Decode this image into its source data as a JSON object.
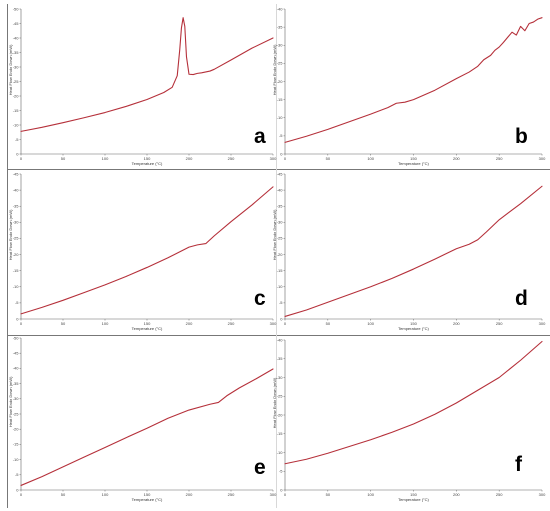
{
  "figure": {
    "colors": {
      "curve": "#b5303a",
      "axis": "#666666",
      "divider": "#777777",
      "label": "#000000"
    }
  },
  "panels": [
    {
      "label": "a"
    },
    {
      "label": "b"
    },
    {
      "label": "c"
    },
    {
      "label": "d"
    },
    {
      "label": "e"
    },
    {
      "label": "f"
    }
  ],
  "chart_data": [
    {
      "type": "line",
      "panel": "a",
      "xlabel": "Temperature (°C)",
      "ylabel": "Heat Flow Endo Down (mW)",
      "xlim": [
        0,
        300
      ],
      "ylim": [
        0,
        50
      ],
      "x_ticks": [
        0,
        50,
        100,
        150,
        200,
        250,
        300
      ],
      "y_ticks": [
        0,
        5,
        10,
        15,
        20,
        25,
        30,
        35,
        40,
        45,
        50
      ],
      "y_tick_labels": [
        "0",
        "-5",
        "-10",
        "-15",
        "-20",
        "-25",
        "-30",
        "-35",
        "-40",
        "-45",
        "-50"
      ],
      "x": [
        0,
        25,
        50,
        75,
        100,
        125,
        150,
        170,
        180,
        186,
        189,
        191,
        193,
        195,
        197,
        200,
        205,
        210,
        215,
        220,
        225,
        230,
        250,
        275,
        300
      ],
      "y": [
        7.8,
        9.2,
        10.8,
        12.5,
        14.3,
        16.4,
        18.8,
        21.2,
        23.0,
        27.0,
        36.0,
        43.5,
        47.0,
        44.0,
        33.5,
        27.5,
        27.4,
        27.8,
        28.0,
        28.3,
        28.6,
        29.2,
        32.4,
        36.5,
        40.0
      ]
    },
    {
      "type": "line",
      "panel": "b",
      "xlabel": "Temperature (°C)",
      "ylabel": "Heat Flow Endo Down (mW)",
      "xlim": [
        0,
        300
      ],
      "ylim": [
        0,
        40
      ],
      "x_ticks": [
        0,
        50,
        100,
        150,
        200,
        250,
        300
      ],
      "y_ticks": [
        0,
        5,
        10,
        15,
        20,
        25,
        30,
        35,
        40
      ],
      "y_tick_labels": [
        "0",
        "-5",
        "-10",
        "-15",
        "-20",
        "-25",
        "-30",
        "-35",
        "-40"
      ],
      "x": [
        0,
        25,
        50,
        75,
        100,
        120,
        130,
        140,
        150,
        175,
        200,
        215,
        225,
        232,
        240,
        245,
        250,
        255,
        260,
        265,
        270,
        275,
        280,
        285,
        290,
        295,
        300
      ],
      "y": [
        3.2,
        4.9,
        6.8,
        8.9,
        11.0,
        12.8,
        14.0,
        14.3,
        15.0,
        17.6,
        20.8,
        22.6,
        24.2,
        26.0,
        27.2,
        28.6,
        29.5,
        30.8,
        32.2,
        33.6,
        32.8,
        35.2,
        34.0,
        36.0,
        36.4,
        37.2,
        37.6
      ]
    },
    {
      "type": "line",
      "panel": "c",
      "xlabel": "Temperature (°C)",
      "ylabel": "Heat Flow Endo Down (mW)",
      "xlim": [
        0,
        300
      ],
      "ylim": [
        0,
        45
      ],
      "x_ticks": [
        0,
        50,
        100,
        150,
        200,
        250,
        300
      ],
      "y_ticks": [
        0,
        5,
        10,
        15,
        20,
        25,
        30,
        35,
        40,
        45
      ],
      "y_tick_labels": [
        "0",
        "-5",
        "-10",
        "-15",
        "-20",
        "-25",
        "-30",
        "-35",
        "-40",
        "-45"
      ],
      "x": [
        0,
        25,
        50,
        75,
        100,
        125,
        150,
        175,
        200,
        210,
        220,
        230,
        250,
        275,
        300
      ],
      "y": [
        1.6,
        3.6,
        5.8,
        8.2,
        10.6,
        13.2,
        16.0,
        19.0,
        22.3,
        23.0,
        23.4,
        25.8,
        30.2,
        35.4,
        41.0
      ]
    },
    {
      "type": "line",
      "panel": "d",
      "xlabel": "Temperature (°C)",
      "ylabel": "Heat Flow Endo Down (mW)",
      "xlim": [
        0,
        300
      ],
      "ylim": [
        0,
        45
      ],
      "x_ticks": [
        0,
        50,
        100,
        150,
        200,
        250,
        300
      ],
      "y_ticks": [
        0,
        5,
        10,
        15,
        20,
        25,
        30,
        35,
        40,
        45
      ],
      "y_tick_labels": [
        "0",
        "-5",
        "-10",
        "-15",
        "-20",
        "-25",
        "-30",
        "-35",
        "-40",
        "-45"
      ],
      "x": [
        0,
        25,
        50,
        75,
        100,
        125,
        150,
        175,
        200,
        215,
        225,
        235,
        250,
        275,
        300
      ],
      "y": [
        0.8,
        2.8,
        5.2,
        7.6,
        10.0,
        12.6,
        15.5,
        18.6,
        21.8,
        23.2,
        24.6,
        27.0,
        30.8,
        35.8,
        41.2
      ]
    },
    {
      "type": "line",
      "panel": "e",
      "xlabel": "Temperature (°C)",
      "ylabel": "Heat Flow Endo Down (mW)",
      "xlim": [
        0,
        300
      ],
      "ylim": [
        0,
        50
      ],
      "x_ticks": [
        0,
        50,
        100,
        150,
        200,
        250,
        300
      ],
      "y_ticks": [
        0,
        5,
        10,
        15,
        20,
        25,
        30,
        35,
        40,
        45,
        50
      ],
      "y_tick_labels": [
        "0",
        "-5",
        "-10",
        "-15",
        "-20",
        "-25",
        "-30",
        "-35",
        "-40",
        "-45",
        "-50"
      ],
      "x": [
        0,
        25,
        50,
        75,
        100,
        125,
        150,
        175,
        200,
        225,
        235,
        245,
        260,
        280,
        300
      ],
      "y": [
        1.5,
        4.4,
        7.6,
        10.8,
        14.0,
        17.2,
        20.3,
        23.6,
        26.3,
        28.2,
        28.8,
        31.0,
        33.6,
        36.6,
        39.8
      ]
    },
    {
      "type": "line",
      "panel": "f",
      "xlabel": "Temperature (°C)",
      "ylabel": "Heat Flow Endo Down (mW)",
      "xlim": [
        0,
        300
      ],
      "ylim": [
        0,
        40
      ],
      "x_ticks": [
        0,
        50,
        100,
        150,
        200,
        250,
        300
      ],
      "y_ticks": [
        0,
        5,
        10,
        15,
        20,
        25,
        30,
        35,
        40
      ],
      "y_tick_labels": [
        "0",
        "-5",
        "-10",
        "-15",
        "-20",
        "-25",
        "-30",
        "-35",
        "-40"
      ],
      "x": [
        0,
        25,
        50,
        75,
        100,
        125,
        150,
        175,
        200,
        225,
        250,
        275,
        300
      ],
      "y": [
        7.0,
        8.2,
        9.8,
        11.6,
        13.4,
        15.4,
        17.6,
        20.2,
        23.2,
        26.6,
        30.0,
        34.6,
        39.6
      ]
    }
  ]
}
